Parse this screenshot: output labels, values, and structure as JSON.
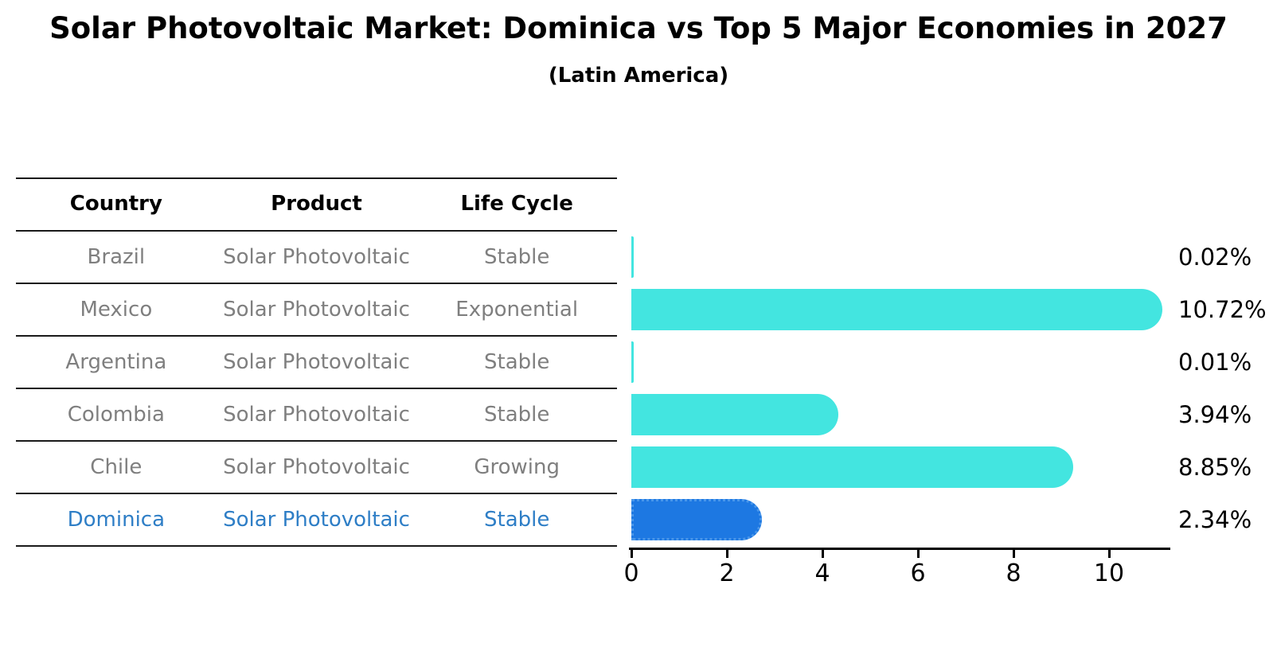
{
  "title": "Solar Photovoltaic Market: Dominica vs Top 5 Major Economies in 2027",
  "subtitle": "(Latin America)",
  "table": {
    "headers": [
      "Country",
      "Product",
      "Life Cycle"
    ],
    "rows": [
      {
        "country": "Brazil",
        "product": "Solar Photovoltaic",
        "life_cycle": "Stable",
        "highlighted": false
      },
      {
        "country": "Mexico",
        "product": "Solar Photovoltaic",
        "life_cycle": "Exponential",
        "highlighted": false
      },
      {
        "country": "Argentina",
        "product": "Solar Photovoltaic",
        "life_cycle": "Stable",
        "highlighted": false
      },
      {
        "country": "Colombia",
        "product": "Solar Photovoltaic",
        "life_cycle": "Stable",
        "highlighted": false
      },
      {
        "country": "Chile",
        "product": "Solar Photovoltaic",
        "life_cycle": "Growing",
        "highlighted": false
      },
      {
        "country": "Dominica",
        "product": "Solar Photovoltaic",
        "life_cycle": "Stable",
        "highlighted": true
      }
    ]
  },
  "chart_data": {
    "type": "bar",
    "orientation": "horizontal",
    "title": "Solar Photovoltaic Market: Dominica vs Top 5 Major Economies in 2027 (Latin America)",
    "categories": [
      "Brazil",
      "Mexico",
      "Argentina",
      "Colombia",
      "Chile",
      "Dominica"
    ],
    "values": [
      0.02,
      10.72,
      0.01,
      3.94,
      8.85,
      2.34
    ],
    "value_labels": [
      "0.02%",
      "10.72%",
      "0.01%",
      "3.94%",
      "8.85%",
      "2.34%"
    ],
    "x_ticks": [
      0,
      2,
      4,
      6,
      8,
      10
    ],
    "xlim": [
      0,
      11.3
    ],
    "xlabel": "",
    "ylabel": "",
    "grid": false,
    "legend": false,
    "highlight_index": 5,
    "bar_color": "#43E5E0",
    "highlight_color": "#1D78E2",
    "highlight_text_color": "#2E7EC6",
    "row_text_color": "#7f7f7f"
  }
}
